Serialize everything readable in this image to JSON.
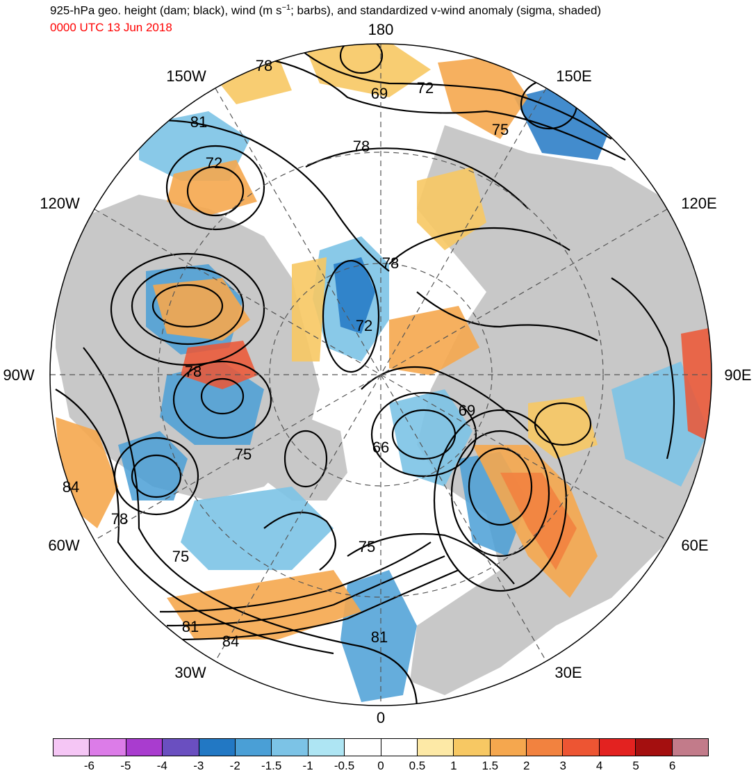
{
  "title": {
    "main": "925-hPa geo. height (dam; black), wind (m s",
    "sup": "−1",
    "rest": "; barbs), and standardized v-wind anomaly (sigma, shaded)",
    "date": "0000 UTC 13 Jun 2018",
    "date_color": "#ff0000"
  },
  "longitude_labels": {
    "n180": "180",
    "w150": "150W",
    "e150": "150E",
    "w120": "120W",
    "e120": "120E",
    "w90": "90W",
    "e90": "90E",
    "w60": "60W",
    "e60": "60E",
    "w30": "30W",
    "e30": "30E",
    "s0": "0"
  },
  "contour_labels": [
    {
      "id": "c78a",
      "text": "78"
    },
    {
      "id": "c69",
      "text": "69"
    },
    {
      "id": "c72a",
      "text": "72"
    },
    {
      "id": "c81a",
      "text": "81"
    },
    {
      "id": "c72b",
      "text": "72"
    },
    {
      "id": "c78b",
      "text": "78"
    },
    {
      "id": "c75a",
      "text": "75"
    },
    {
      "id": "c78c",
      "text": "78"
    },
    {
      "id": "c72c",
      "text": "72"
    },
    {
      "id": "c78d",
      "text": "78"
    },
    {
      "id": "c69b",
      "text": "69"
    },
    {
      "id": "c66",
      "text": "66"
    },
    {
      "id": "c75b",
      "text": "75"
    },
    {
      "id": "c84a",
      "text": "84"
    },
    {
      "id": "c78e",
      "text": "78"
    },
    {
      "id": "c75c",
      "text": "75"
    },
    {
      "id": "c75d",
      "text": "75"
    },
    {
      "id": "c81b",
      "text": "81"
    },
    {
      "id": "c84b",
      "text": "84"
    },
    {
      "id": "c81c",
      "text": "81"
    }
  ],
  "colorbar": {
    "colors": [
      "#f5c6f5",
      "#dc7ce8",
      "#a93ccf",
      "#6a4fc0",
      "#2278c4",
      "#4a9fd6",
      "#7cc3e6",
      "#aee5f3",
      "#ffffff",
      "#ffffff",
      "#fde9a6",
      "#f7c863",
      "#f5a74e",
      "#f2823f",
      "#ed5533",
      "#e32220",
      "#a40f0f",
      "#c27b8a"
    ],
    "tick_labels": [
      "-6",
      "-5",
      "-4",
      "-3",
      "-2",
      "-1.5",
      "-1",
      "-0.5",
      "0",
      "0.5",
      "1",
      "1.5",
      "2",
      "3",
      "4",
      "5",
      "6"
    ]
  }
}
